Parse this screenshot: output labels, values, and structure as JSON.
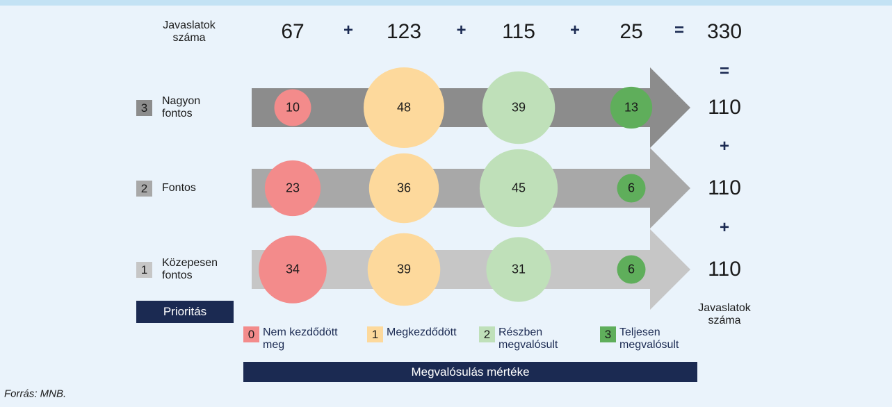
{
  "top": {
    "label": "Javaslatok száma",
    "totals": [
      67,
      123,
      115,
      25
    ],
    "grand_total": 330
  },
  "plus_sign": "+",
  "equals_sign": "=",
  "rows": [
    {
      "rank": "3",
      "label": "Nagyon fontos",
      "color": "#8c8c8c",
      "values": [
        10,
        48,
        39,
        13
      ],
      "total": 110
    },
    {
      "rank": "2",
      "label": "Fontos",
      "color": "#a8a8a8",
      "values": [
        23,
        36,
        45,
        6
      ],
      "total": 110
    },
    {
      "rank": "1",
      "label": "Közepesen fontos",
      "color": "#c6c6c6",
      "values": [
        34,
        39,
        31,
        6
      ],
      "total": 110
    }
  ],
  "levels": [
    {
      "rank": "0",
      "label": "Nem kezdődött meg",
      "color": "#f38b8b"
    },
    {
      "rank": "1",
      "label": "Megkezdődött",
      "color": "#fdd99c"
    },
    {
      "rank": "2",
      "label": "Részben megvalósult",
      "color": "#bfe0b9"
    },
    {
      "rank": "3",
      "label": "Teljesen megvalósult",
      "color": "#5fae5b"
    }
  ],
  "priority_label": "Prioritás",
  "right_label": "Javaslatok száma",
  "progress_label": "Megvalósulás mértéke",
  "source": "Forrás: MNB."
}
